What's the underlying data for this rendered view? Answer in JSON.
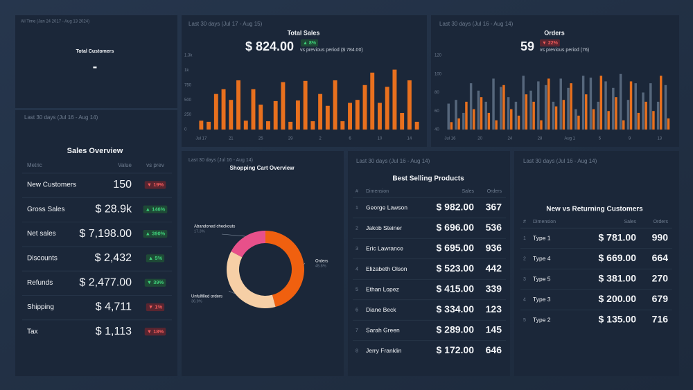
{
  "total_customers": {
    "period": "All Time (Jan 24 2017 - Aug 13 2024)",
    "title": "Total Customers",
    "value": "-"
  },
  "chart_data": [
    {
      "type": "bar",
      "period": "Last 30 days (Jul 17 - Aug 15)",
      "title": "Total Sales",
      "kpi": "$ 824.00",
      "change": "▲ 8%",
      "change_tone": "good",
      "comparison": "vs previous period ($ 784.00)",
      "categories": [
        "Jul 17",
        null,
        null,
        null,
        "21",
        null,
        null,
        null,
        "25",
        null,
        null,
        null,
        "29",
        null,
        null,
        null,
        "2",
        null,
        null,
        null,
        "6",
        null,
        null,
        null,
        "10",
        null,
        null,
        null,
        "14",
        null
      ],
      "series": [
        {
          "color": "#e8701e",
          "values": [
            150,
            130,
            600,
            680,
            500,
            830,
            150,
            680,
            420,
            140,
            480,
            800,
            130,
            490,
            820,
            140,
            600,
            400,
            830,
            140,
            450,
            500,
            750,
            960,
            450,
            720,
            1010,
            280,
            830,
            130
          ]
        }
      ],
      "ylim": [
        0,
        1250
      ],
      "yticks": [
        0,
        250,
        500,
        750,
        {
          "value": 1000,
          "label": "1k"
        },
        {
          "value": 1250,
          "label": "1.3k"
        }
      ]
    },
    {
      "type": "bar",
      "period": "Last 30 days (Jul 16 - Aug 14)",
      "title": "Orders",
      "kpi": "59",
      "change": "▼ 22%",
      "change_tone": "bad",
      "comparison": "vs previous period (76)",
      "categories": [
        "Jul 16",
        null,
        null,
        null,
        "20",
        null,
        null,
        null,
        "24",
        null,
        null,
        null,
        "28",
        null,
        null,
        null,
        "Aug 1",
        null,
        null,
        null,
        "5",
        null,
        null,
        null,
        "9",
        null,
        null,
        null,
        "13",
        null
      ],
      "series": [
        {
          "color": "#56677c",
          "values": [
            68,
            72,
            58,
            90,
            82,
            70,
            95,
            86,
            75,
            70,
            98,
            82,
            92,
            88,
            70,
            95,
            85,
            62,
            98,
            96,
            70,
            92,
            85,
            100,
            72,
            90,
            80,
            90,
            70,
            88
          ]
        },
        {
          "color": "#e8701e",
          "values": [
            48,
            52,
            70,
            62,
            75,
            58,
            50,
            88,
            62,
            55,
            78,
            70,
            50,
            95,
            65,
            72,
            90,
            55,
            78,
            62,
            98,
            60,
            75,
            50,
            92,
            58,
            70,
            60,
            98,
            52
          ]
        }
      ],
      "ylim": [
        40,
        120
      ],
      "yticks": [
        40,
        60,
        80,
        100,
        120
      ]
    },
    {
      "type": "pie",
      "period": "Last 30 days (Jul 16 - Aug 14)",
      "title": "Shopping Cart Overview",
      "categories": [
        "Abandoned checkouts",
        "Orders",
        "Unfulfilled orders"
      ],
      "values": [
        17.3,
        45.8,
        36.9
      ],
      "value_labels": [
        "17.3%",
        "45.8%",
        "36.9%"
      ],
      "colors": [
        "#e8508a",
        "#f0600f",
        "#f6cfa6"
      ]
    }
  ],
  "sales_overview": {
    "period": "Last 30 days (Jul 16 - Aug 14)",
    "title": "Sales Overview",
    "columns": [
      "Metric",
      "Value",
      "vs prev"
    ],
    "rows": [
      {
        "metric": "New Customers",
        "value": "150",
        "change": "▼ 19%",
        "tone": "bad"
      },
      {
        "metric": "Gross Sales",
        "value": "$ 28.9k",
        "change": "▲ 146%",
        "tone": "good"
      },
      {
        "metric": "Net sales",
        "value": "$ 7,198.00",
        "change": "▲ 390%",
        "tone": "good"
      },
      {
        "metric": "Discounts",
        "value": "$ 2,432",
        "change": "▲ 5%",
        "tone": "good"
      },
      {
        "metric": "Refunds",
        "value": "$ 2,477.00",
        "change": "▼ 39%",
        "tone": "good"
      },
      {
        "metric": "Shipping",
        "value": "$ 4,711",
        "change": "▼ 1%",
        "tone": "bad"
      },
      {
        "metric": "Tax",
        "value": "$ 1,113",
        "change": "▼ 18%",
        "tone": "bad"
      }
    ]
  },
  "best_selling": {
    "period": "Last 30 days (Jul 16 - Aug 14)",
    "title": "Best Selling Products",
    "columns": [
      "#",
      "Dimension",
      "Sales",
      "Orders"
    ],
    "rows": [
      [
        "1",
        "George Lawson",
        "$ 982.00",
        "367"
      ],
      [
        "2",
        "Jakob Steiner",
        "$ 696.00",
        "536"
      ],
      [
        "3",
        "Eric Lawrance",
        "$ 695.00",
        "936"
      ],
      [
        "4",
        "Elizabeth Olson",
        "$ 523.00",
        "442"
      ],
      [
        "5",
        "Ethan Lopez",
        "$ 415.00",
        "339"
      ],
      [
        "6",
        "Diane Beck",
        "$ 334.00",
        "123"
      ],
      [
        "7",
        "Sarah Green",
        "$ 289.00",
        "145"
      ],
      [
        "8",
        "Jerry Franklin",
        "$ 172.00",
        "646"
      ]
    ]
  },
  "new_vs_returning": {
    "period": "Last 30 days (Jul 16 - Aug 14)",
    "title": "New vs Returning Customers",
    "columns": [
      "#",
      "Dimension",
      "Sales",
      "Orders"
    ],
    "rows": [
      [
        "1",
        "Type 1",
        "$ 781.00",
        "990"
      ],
      [
        "2",
        "Type 4",
        "$ 669.00",
        "664"
      ],
      [
        "3",
        "Type 5",
        "$ 381.00",
        "270"
      ],
      [
        "4",
        "Type 3",
        "$ 200.00",
        "679"
      ],
      [
        "5",
        "Type 2",
        "$ 135.00",
        "716"
      ]
    ]
  }
}
